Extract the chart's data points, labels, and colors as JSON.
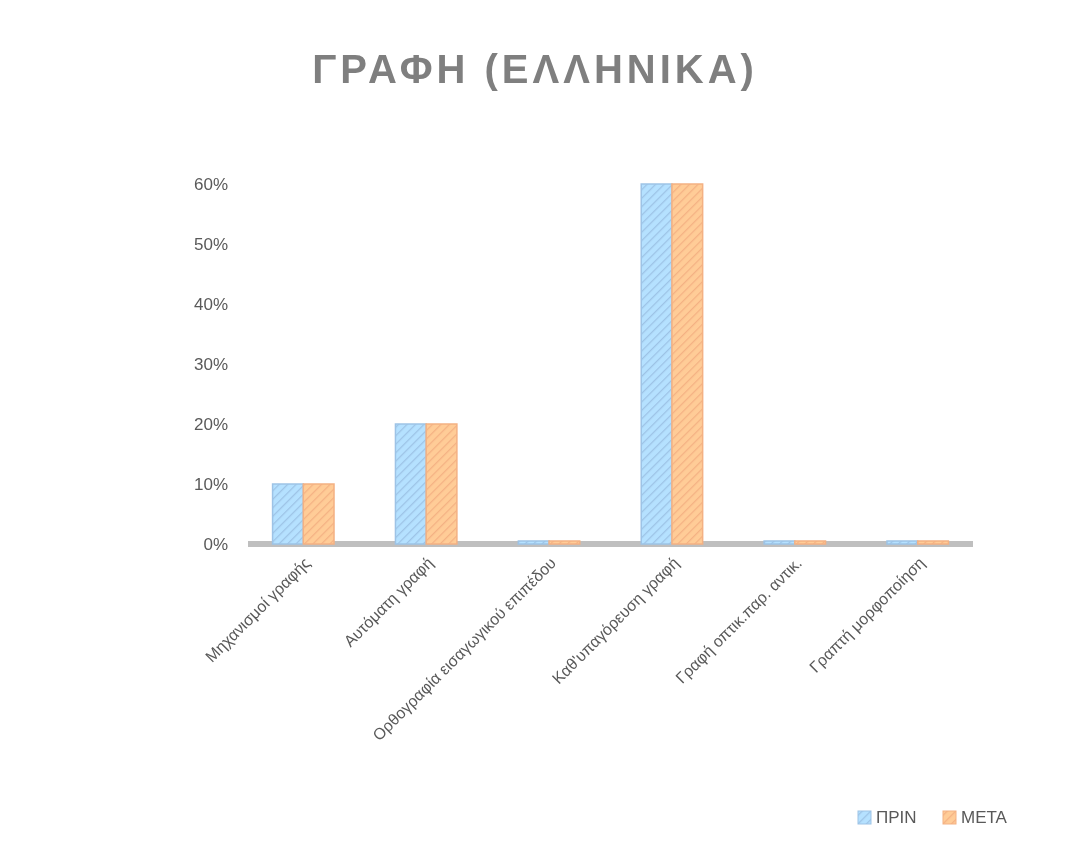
{
  "chart_data": {
    "type": "bar",
    "title": "ΓΡΑΦΗ (ΕΛΛΗΝΙΚΑ)",
    "categories": [
      "Μηχανισμοί γραφής",
      "Αυτόματη γραφή",
      "Ορθογραφία εισαγωγικού επιπέδου",
      "Καθ'υπαγόρευση γραφή",
      "Γραφή οπτικ.παρ. αντικ.",
      "Γραπτή μορφοποίηση"
    ],
    "series": [
      {
        "name": "ΠΡΙΝ",
        "color": "#9dc3e6",
        "values": [
          10,
          20,
          0,
          60,
          0,
          0
        ]
      },
      {
        "name": "ΜΕΤΑ",
        "color": "#f4b183",
        "values": [
          10,
          20,
          0,
          60,
          0,
          0
        ]
      }
    ],
    "ylim": [
      0,
      60
    ],
    "yticks": [
      {
        "value": 0,
        "label": "0%"
      },
      {
        "value": 10,
        "label": "10%"
      },
      {
        "value": 20,
        "label": "20%"
      },
      {
        "value": 30,
        "label": "30%"
      },
      {
        "value": 40,
        "label": "40%"
      },
      {
        "value": 50,
        "label": "50%"
      },
      {
        "value": 60,
        "label": "60%"
      }
    ],
    "legend": "bottom right"
  }
}
